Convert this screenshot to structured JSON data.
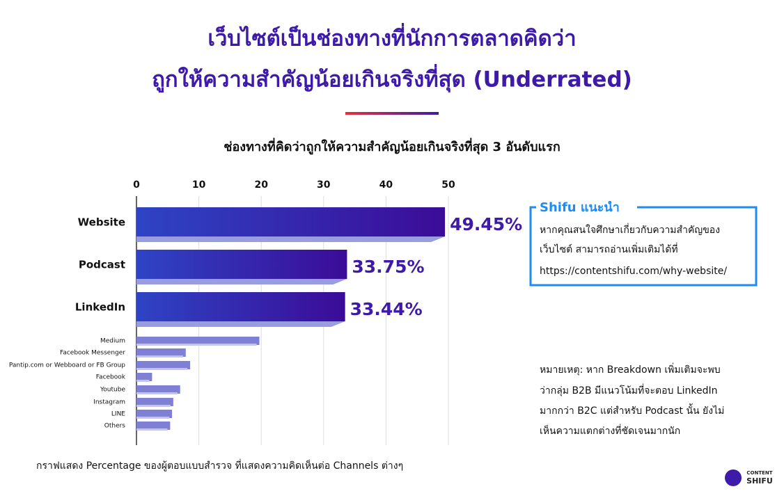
{
  "chart_data": {
    "type": "bar",
    "orientation": "horizontal",
    "title": [
      "เว็บไซต์เป็นช่องทางที่นักการตลาดคิดว่า",
      "ถูกให้ความสำคัญน้อยเกินจริงที่สุด (Underrated)"
    ],
    "subtitle": "ช่องทางที่คิดว่าถูกให้ความสำคัญน้อยเกินจริงที่สุด 3 อันดับแรก",
    "categories": [
      "Website",
      "Podcast",
      "LinkedIn",
      "Medium",
      "Facebook Messenger",
      "Pantip.com  or Webboard or FB Group",
      "Facebook",
      "Youtube",
      "Instagram",
      "LINE",
      "Others"
    ],
    "values": [
      49.45,
      33.75,
      33.44,
      19.7,
      7.9,
      8.6,
      2.5,
      7.0,
      5.9,
      5.7,
      5.4
    ],
    "value_labels": [
      "49.45%",
      "33.75%",
      "33.44%",
      null,
      null,
      null,
      null,
      null,
      null,
      null,
      null
    ],
    "colors": [
      "#2e44c4",
      "#3b0c98"
    ],
    "xlim": [
      0,
      50
    ],
    "xticks": [
      0,
      10,
      20,
      30,
      40,
      50
    ],
    "grid": true,
    "caption": "กราฟแสดง Percentage ของผู้ตอบแบบสำรวจ ที่แสดงความคิดเห็นต่อ Channels ต่างๆ"
  },
  "callout": {
    "title": "Shifu แนะนำ",
    "lines": [
      "หากคุณสนใจศึกษาเกี่ยวกับความสำคัญของ",
      "เว็บไซต์ สามารถอ่านเพิ่มเติมได้ที่",
      "https://contentshifu.com/why-website/"
    ]
  },
  "note": {
    "lines": [
      "หมายเหตุ: หาก Breakdown เพิ่มเติมจะพบ",
      "ว่ากลุ่ม B2B มีแนวโน้มที่จะตอบ LinkedIn",
      "มากกว่า B2C แต่สำหรับ Podcast นั้น ยังไม่",
      "เห็นความแตกต่างที่ชัดเจนมากนัก"
    ]
  },
  "logo": {
    "lines": [
      "CONTENT",
      "SHIFU"
    ]
  }
}
